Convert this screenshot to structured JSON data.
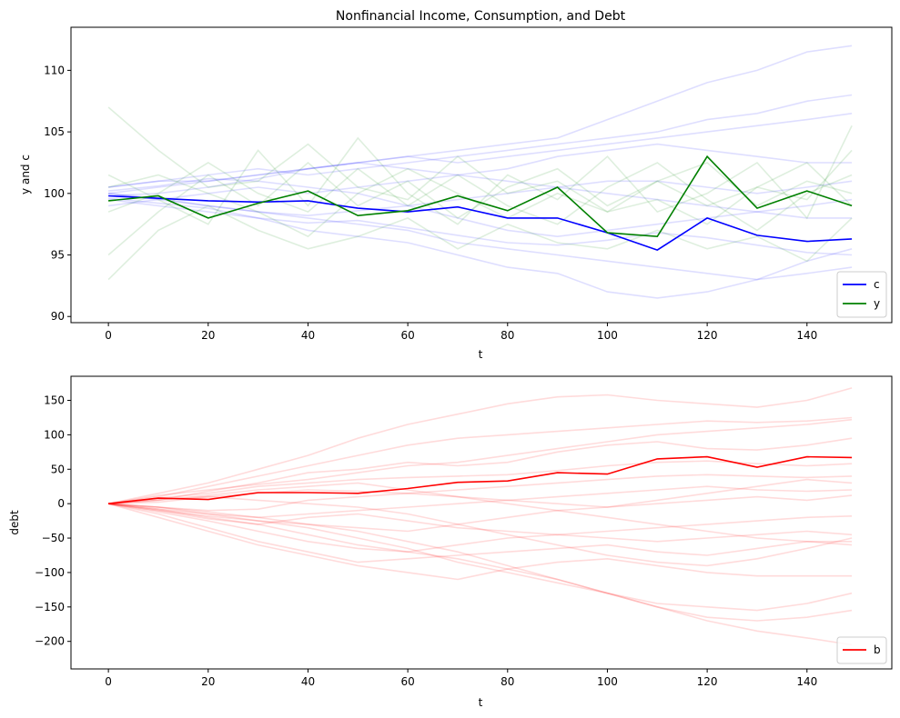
{
  "chart_data": [
    {
      "type": "line",
      "title": "Nonfinancial Income, Consumption, and Debt",
      "xlabel": "t",
      "ylabel": "y and c",
      "xlim": [
        -7.5,
        157
      ],
      "ylim": [
        89.5,
        113.5
      ],
      "xticks": [
        0,
        20,
        40,
        60,
        80,
        100,
        120,
        140
      ],
      "yticks": [
        90,
        95,
        100,
        105,
        110
      ],
      "xtick_labels": [
        "0",
        "20",
        "40",
        "60",
        "80",
        "100",
        "120",
        "140"
      ],
      "ytick_labels": [
        "90",
        "95",
        "100",
        "105",
        "110"
      ],
      "legend": "lower-right",
      "x": [
        0,
        10,
        20,
        30,
        40,
        50,
        60,
        70,
        80,
        90,
        100,
        110,
        120,
        130,
        140,
        149
      ],
      "series": [
        {
          "name": "c",
          "color": "#0000ff",
          "legend": true,
          "values": [
            99.8,
            99.6,
            99.4,
            99.3,
            99.4,
            98.8,
            98.5,
            98.9,
            98.0,
            98.0,
            96.8,
            95.4,
            98.0,
            96.6,
            96.1,
            96.3
          ]
        },
        {
          "name": "y",
          "color": "#008000",
          "legend": true,
          "values": [
            99.4,
            99.8,
            98.0,
            99.2,
            100.2,
            98.2,
            98.6,
            99.8,
            98.6,
            100.5,
            96.8,
            96.5,
            103.0,
            98.8,
            100.2,
            99.0
          ]
        }
      ],
      "background_series": [
        {
          "color": "#0000ff",
          "opacity": 0.13,
          "values": [
            100.5,
            101.0,
            101.5,
            102.0,
            101.5,
            102.0,
            102.5,
            103.0,
            103.5,
            104.0,
            104.5,
            105.0,
            106.0,
            106.5,
            107.5,
            108.0
          ]
        },
        {
          "color": "#0000ff",
          "opacity": 0.13,
          "values": [
            100.0,
            100.5,
            101.0,
            101.5,
            102.0,
            102.5,
            103.0,
            103.5,
            104.0,
            104.5,
            106.0,
            107.5,
            109.0,
            110.0,
            111.5,
            112.0
          ]
        },
        {
          "color": "#0000ff",
          "opacity": 0.13,
          "values": [
            100.0,
            99.5,
            99.0,
            98.5,
            98.0,
            97.5,
            97.0,
            96.0,
            95.5,
            95.0,
            94.5,
            94.0,
            93.5,
            93.0,
            93.5,
            94.0
          ]
        },
        {
          "color": "#0000ff",
          "opacity": 0.13,
          "values": [
            99.5,
            99.0,
            98.5,
            98.0,
            97.0,
            96.5,
            96.0,
            95.0,
            94.0,
            93.5,
            92.0,
            91.5,
            92.0,
            93.0,
            94.5,
            95.5
          ]
        },
        {
          "color": "#0000ff",
          "opacity": 0.13,
          "values": [
            100.5,
            101.0,
            101.0,
            101.5,
            102.0,
            102.5,
            103.0,
            102.5,
            103.0,
            103.5,
            104.0,
            104.5,
            105.0,
            105.5,
            106.0,
            106.5
          ]
        },
        {
          "color": "#0000ff",
          "opacity": 0.13,
          "values": [
            99.0,
            99.5,
            100.0,
            100.5,
            100.0,
            100.5,
            101.0,
            101.5,
            101.0,
            100.5,
            100.0,
            99.5,
            99.0,
            98.5,
            98.0,
            98.0
          ]
        },
        {
          "color": "#0000ff",
          "opacity": 0.13,
          "values": [
            100.2,
            100.6,
            101.2,
            101.0,
            100.5,
            100.0,
            99.0,
            98.0,
            97.0,
            96.5,
            97.0,
            97.5,
            98.0,
            98.5,
            99.0,
            99.5
          ]
        },
        {
          "color": "#0000ff",
          "opacity": 0.13,
          "values": [
            99.8,
            100.0,
            100.5,
            101.2,
            102.0,
            102.5,
            102.0,
            101.5,
            102.0,
            103.0,
            103.5,
            104.0,
            103.5,
            103.0,
            102.5,
            102.5
          ]
        },
        {
          "color": "#0000ff",
          "opacity": 0.13,
          "values": [
            100.0,
            99.6,
            99.0,
            98.5,
            98.2,
            98.6,
            99.0,
            99.5,
            100.0,
            100.5,
            101.0,
            101.0,
            100.5,
            100.0,
            100.5,
            101.0
          ]
        },
        {
          "color": "#0000ff",
          "opacity": 0.13,
          "values": [
            99.6,
            99.2,
            98.8,
            98.0,
            97.6,
            97.8,
            97.2,
            96.6,
            96.0,
            95.8,
            96.2,
            96.8,
            96.4,
            95.8,
            95.2,
            95.0
          ]
        },
        {
          "color": "#008000",
          "opacity": 0.13,
          "values": [
            107.0,
            103.5,
            100.5,
            101.0,
            104.0,
            100.5,
            99.5,
            103.0,
            100.0,
            101.0,
            98.5,
            101.0,
            99.0,
            100.5,
            99.5,
            103.5
          ]
        },
        {
          "color": "#008000",
          "opacity": 0.13,
          "values": [
            93.0,
            97.0,
            99.0,
            97.0,
            95.5,
            96.5,
            98.0,
            95.5,
            97.5,
            96.0,
            95.5,
            97.0,
            95.5,
            96.5,
            94.5,
            98.0
          ]
        },
        {
          "color": "#008000",
          "opacity": 0.13,
          "values": [
            95.0,
            98.5,
            101.5,
            99.0,
            102.5,
            99.0,
            101.0,
            98.0,
            100.5,
            102.0,
            99.0,
            101.0,
            102.5,
            99.0,
            101.0,
            100.0
          ]
        },
        {
          "color": "#008000",
          "opacity": 0.13,
          "values": [
            101.5,
            99.5,
            97.5,
            103.5,
            99.0,
            104.5,
            100.0,
            97.5,
            101.5,
            99.5,
            103.0,
            98.5,
            100.0,
            102.5,
            98.0,
            105.5
          ]
        },
        {
          "color": "#008000",
          "opacity": 0.13,
          "values": [
            100.5,
            101.5,
            100.0,
            98.5,
            96.5,
            100.0,
            102.0,
            100.0,
            98.0,
            100.0,
            98.5,
            99.5,
            97.5,
            100.5,
            102.5,
            99.0
          ]
        },
        {
          "color": "#008000",
          "opacity": 0.13,
          "values": [
            98.5,
            100.0,
            102.5,
            100.0,
            98.5,
            102.0,
            99.0,
            101.5,
            99.0,
            97.5,
            100.5,
            102.5,
            99.5,
            97.0,
            100.0,
            101.5
          ]
        }
      ]
    },
    {
      "type": "line",
      "title": "",
      "xlabel": "t",
      "ylabel": "debt",
      "xlim": [
        -7.5,
        157
      ],
      "ylim": [
        -240,
        185
      ],
      "xticks": [
        0,
        20,
        40,
        60,
        80,
        100,
        120,
        140
      ],
      "yticks": [
        150,
        100,
        50,
        0,
        -50,
        -100,
        -150,
        -200
      ],
      "xtick_labels": [
        "0",
        "20",
        "40",
        "60",
        "80",
        "100",
        "120",
        "140"
      ],
      "ytick_labels": [
        "150",
        "100",
        "50",
        "0",
        "−50",
        "−100",
        "−150",
        "−200"
      ],
      "legend": "lower-right",
      "x": [
        0,
        10,
        20,
        30,
        40,
        50,
        60,
        70,
        80,
        90,
        100,
        110,
        120,
        130,
        140,
        149
      ],
      "series": [
        {
          "name": "b",
          "color": "#ff0000",
          "legend": true,
          "values": [
            0,
            8,
            6,
            16,
            16,
            15,
            22,
            31,
            33,
            45,
            43,
            65,
            68,
            53,
            68,
            67
          ]
        }
      ],
      "background_series": [
        {
          "color": "#ff0000",
          "opacity": 0.14,
          "values": [
            0,
            15,
            30,
            50,
            70,
            95,
            115,
            130,
            145,
            155,
            158,
            150,
            145,
            140,
            150,
            168
          ]
        },
        {
          "color": "#ff0000",
          "opacity": 0.14,
          "values": [
            0,
            10,
            25,
            40,
            55,
            70,
            85,
            95,
            100,
            105,
            110,
            115,
            120,
            118,
            120,
            125
          ]
        },
        {
          "color": "#ff0000",
          "opacity": 0.14,
          "values": [
            0,
            12,
            20,
            28,
            35,
            45,
            55,
            60,
            70,
            80,
            90,
            100,
            105,
            110,
            115,
            122
          ]
        },
        {
          "color": "#ff0000",
          "opacity": 0.14,
          "values": [
            0,
            5,
            18,
            30,
            45,
            50,
            60,
            55,
            60,
            75,
            85,
            90,
            80,
            78,
            85,
            95
          ]
        },
        {
          "color": "#ff0000",
          "opacity": 0.14,
          "values": [
            0,
            8,
            15,
            25,
            30,
            35,
            38,
            40,
            42,
            48,
            55,
            60,
            62,
            58,
            55,
            58
          ]
        },
        {
          "color": "#ff0000",
          "opacity": 0.14,
          "values": [
            0,
            -5,
            -10,
            -8,
            5,
            10,
            15,
            20,
            25,
            30,
            35,
            40,
            42,
            40,
            38,
            40
          ]
        },
        {
          "color": "#ff0000",
          "opacity": 0.14,
          "values": [
            0,
            2,
            10,
            15,
            20,
            18,
            15,
            10,
            5,
            0,
            -5,
            5,
            15,
            25,
            35,
            30
          ]
        },
        {
          "color": "#ff0000",
          "opacity": 0.14,
          "values": [
            0,
            -8,
            -15,
            -20,
            -15,
            -10,
            -5,
            0,
            5,
            10,
            15,
            20,
            25,
            20,
            18,
            20
          ]
        },
        {
          "color": "#ff0000",
          "opacity": 0.14,
          "values": [
            0,
            -5,
            -15,
            -25,
            -30,
            -35,
            -40,
            -30,
            -20,
            -10,
            -5,
            0,
            5,
            10,
            5,
            12
          ]
        },
        {
          "color": "#ff0000",
          "opacity": 0.14,
          "values": [
            0,
            -10,
            -22,
            -30,
            -20,
            -15,
            -25,
            -35,
            -40,
            -45,
            -40,
            -35,
            -30,
            -25,
            -20,
            -18
          ]
        },
        {
          "color": "#ff0000",
          "opacity": 0.14,
          "values": [
            0,
            -12,
            -25,
            -40,
            -55,
            -65,
            -70,
            -60,
            -50,
            -45,
            -50,
            -55,
            -50,
            -45,
            -40,
            -45
          ]
        },
        {
          "color": "#ff0000",
          "opacity": 0.14,
          "values": [
            0,
            -15,
            -35,
            -55,
            -70,
            -85,
            -80,
            -75,
            -70,
            -65,
            -60,
            -70,
            -75,
            -65,
            -55,
            -55
          ]
        },
        {
          "color": "#ff0000",
          "opacity": 0.14,
          "values": [
            0,
            -20,
            -40,
            -60,
            -75,
            -90,
            -100,
            -110,
            -95,
            -85,
            -80,
            -90,
            -100,
            -105,
            -105,
            -105
          ]
        },
        {
          "color": "#ff0000",
          "opacity": 0.14,
          "values": [
            0,
            -8,
            -20,
            -30,
            -45,
            -60,
            -70,
            -80,
            -95,
            -110,
            -130,
            -145,
            -150,
            -155,
            -145,
            -130
          ]
        },
        {
          "color": "#ff0000",
          "opacity": 0.14,
          "values": [
            0,
            -10,
            -18,
            -25,
            -35,
            -50,
            -65,
            -85,
            -100,
            -115,
            -130,
            -150,
            -165,
            -170,
            -165,
            -155
          ]
        },
        {
          "color": "#ff0000",
          "opacity": 0.14,
          "values": [
            0,
            -5,
            -12,
            -20,
            -30,
            -40,
            -55,
            -70,
            -90,
            -110,
            -130,
            -150,
            -170,
            -185,
            -195,
            -205
          ]
        },
        {
          "color": "#ff0000",
          "opacity": 0.14,
          "values": [
            0,
            5,
            12,
            20,
            25,
            30,
            20,
            10,
            0,
            -10,
            -20,
            -30,
            -40,
            -50,
            -55,
            -60
          ]
        },
        {
          "color": "#ff0000",
          "opacity": 0.14,
          "values": [
            0,
            6,
            10,
            5,
            0,
            -5,
            -15,
            -30,
            -45,
            -60,
            -75,
            -85,
            -90,
            -80,
            -65,
            -50
          ]
        }
      ]
    }
  ]
}
